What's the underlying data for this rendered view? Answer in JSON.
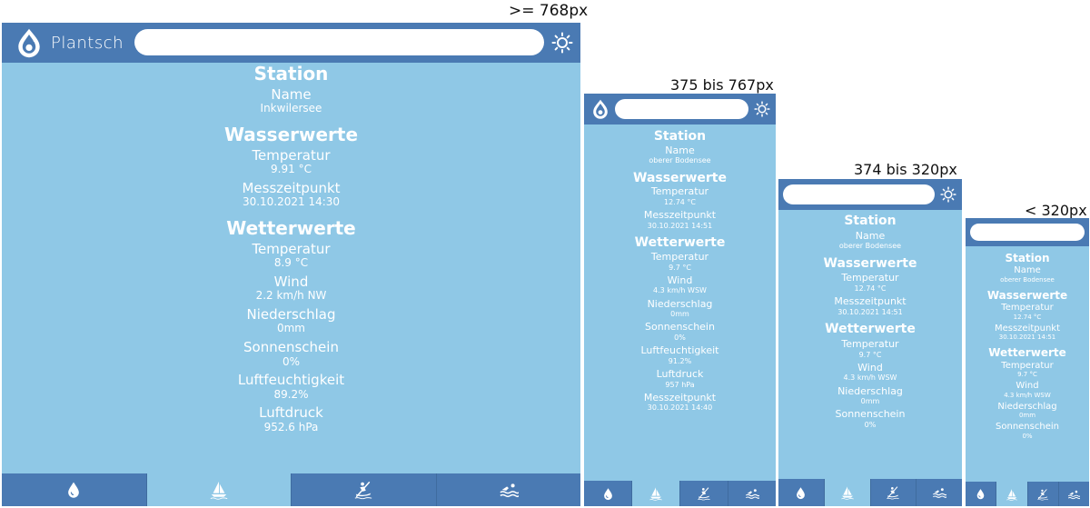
{
  "breakpoints": {
    "bp1": ">= 768px",
    "bp2": "375 bis 767px",
    "bp3": "374 bis 320px",
    "bp4": "< 320px"
  },
  "app": {
    "name": "Plantsch"
  },
  "headings": {
    "station": "Station",
    "water": "Wasserwerte",
    "weather": "Wetterwerte"
  },
  "labels": {
    "name": "Name",
    "temperature": "Temperatur",
    "measure_time": "Messzeitpunkt",
    "wind": "Wind",
    "precipitation": "Niederschlag",
    "sunshine": "Sonnenschein",
    "humidity": "Luftfeuchtigkeit",
    "pressure": "Luftdruck"
  },
  "desktop": {
    "station_name": "Inkwilersee",
    "water_temp": "9.91 °C",
    "water_time": "30.10.2021 14:30",
    "weather_temp": "8.9 °C",
    "wind": "2.2 km/h NW",
    "precip": "0mm",
    "sun": "0%",
    "humidity": "89.2%",
    "pressure": "952.6 hPa"
  },
  "mobile": {
    "station_name": "oberer Bodensee",
    "water_temp": "12.74 °C",
    "water_time": "30.10.2021 14:51",
    "weather_temp": "9.7 °C",
    "wind": "4.3 km/h WSW",
    "precip": "0mm",
    "sun": "0%",
    "humidity": "91.2%",
    "pressure": "957 hPa",
    "weather_time": "30.10.2021 14:40"
  },
  "nav": {
    "tabs": [
      {
        "icon": "water-drop-icon",
        "active": false
      },
      {
        "icon": "sailboat-icon",
        "active": true
      },
      {
        "icon": "kayak-icon",
        "active": false
      },
      {
        "icon": "swimmer-icon",
        "active": false
      }
    ]
  },
  "colors": {
    "header": "#4a7ab3",
    "background": "#8fc8e6",
    "text": "#ffffff"
  }
}
